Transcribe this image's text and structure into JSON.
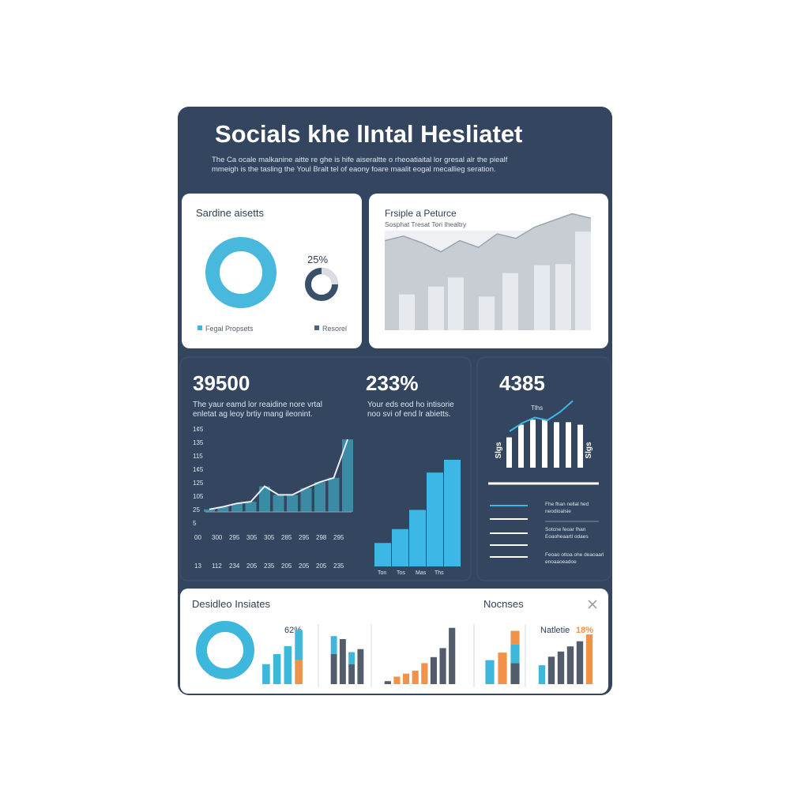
{
  "header": {
    "title": "Socials khe lIntal Hesliatet",
    "subtitle": [
      "The Ca ocale malkanine aitte re ghe is hife aiseraltte o rheoatiaital lor gresal alr the piealf",
      "mmeigh is the tasling the Youl Bralt tel of eaony foare maalit eogal mecallieg seration."
    ]
  },
  "assets": {
    "title": "Sardine aisetts",
    "small_donut": {
      "value": 25,
      "label": "25%"
    },
    "legend": [
      "Fegal Propsets",
      "Resorel"
    ]
  },
  "performance": {
    "title": "Frsiple a Peturce",
    "subtitle": "Sosphat Tresat Tori Ihealtry",
    "area": [
      80,
      84,
      78,
      70,
      80,
      74,
      86,
      82,
      92,
      98,
      104,
      100
    ],
    "bars": [
      32,
      39,
      47,
      30,
      51,
      58,
      59,
      88
    ],
    "ylim": [
      0,
      110
    ]
  },
  "kpi1": {
    "value": "39500",
    "text": [
      "The yaur eamd lor reaidine nore vrtal",
      "enletat ag leoy brtiy mang ileonint."
    ],
    "axis_labels": [
      "1¢5",
      "135",
      "115",
      "1¢5",
      "125",
      "105",
      "25",
      "5"
    ],
    "x_labels": [
      [
        "00",
        "300",
        "295",
        "305",
        "305",
        "285",
        "295",
        "298",
        "295"
      ],
      [
        "13",
        "112",
        "234",
        "205",
        "235",
        "205",
        "205",
        "205",
        "235"
      ]
    ],
    "values": [
      3,
      6,
      10,
      12,
      30,
      20,
      20,
      28,
      35,
      40,
      85
    ],
    "ylim": [
      0,
      100
    ]
  },
  "kpi2": {
    "value": "233%",
    "text": [
      "Your eds eod ho intisorie",
      "noo svi of end lr abietts."
    ],
    "bars": [
      22,
      35,
      53,
      88,
      100
    ],
    "ylim": [
      0,
      100
    ],
    "x_labels": [
      "Ton",
      "Tos",
      "Mas",
      "Ths"
    ]
  },
  "kpi3": {
    "value": "4385",
    "side_labels": [
      "Slgs",
      "Slgs"
    ],
    "line_label": "Tlhs",
    "bars": [
      60,
      85,
      95,
      95,
      90,
      90,
      85
    ],
    "line": [
      20,
      35,
      45,
      40,
      55,
      75
    ],
    "ylim": [
      0,
      100
    ],
    "items": [
      [
        "Fhe fhan nellal hed",
        "neodioalsie"
      ],
      [
        "Sotcne feoar fhan",
        "Eoaoheaartl odaes"
      ],
      [
        "Feoao ottoa ohe deaoaarl",
        "enoaaoeadoe"
      ]
    ]
  },
  "insights": {
    "title": "Desidleo Insiates",
    "right_title": "Nocnses",
    "donut_label": "62%",
    "right_label": "Natletie",
    "right_value": "18%",
    "charts": [
      {
        "ylim": [
          0,
          60
        ],
        "series": [
          {
            "color": "#f0924a",
            "values": [
              0,
              0,
              0,
              24
            ]
          },
          {
            "color": "#3db7dc",
            "values": [
              20,
              30,
              38,
              30
            ]
          }
        ]
      },
      {
        "ylim": [
          0,
          60
        ],
        "series": [
          {
            "color": "#535c6a",
            "values": [
              30,
              45,
              20,
              35
            ]
          },
          {
            "color": "#3db7dc",
            "values": [
              18,
              0,
              12,
              0
            ]
          }
        ]
      },
      {
        "ylim": [
          0,
          80
        ],
        "series": [
          {
            "color": "#535c6a",
            "values": [
              4,
              0,
              0,
              0,
              0,
              36,
              48,
              75
            ]
          },
          {
            "color": "#f0924a",
            "values": [
              0,
              10,
              14,
              18,
              28,
              0,
              0,
              0
            ]
          }
        ]
      },
      {
        "ylim": [
          0,
          80
        ],
        "series": [
          {
            "color": "#535c6a",
            "values": [
              0,
              0,
              28
            ]
          },
          {
            "color": "#3db7dc",
            "values": [
              32,
              0,
              25
            ]
          },
          {
            "color": "#f0924a",
            "values": [
              0,
              42,
              18
            ]
          }
        ]
      },
      {
        "ylim": [
          0,
          70
        ],
        "series": [
          {
            "color": "#3db7dc",
            "values": [
              22,
              0,
              0,
              0,
              0,
              0
            ]
          },
          {
            "color": "#535c6a",
            "values": [
              0,
              32,
              38,
              44,
              50,
              0
            ]
          },
          {
            "color": "#f0924a",
            "values": [
              0,
              0,
              0,
              0,
              0,
              58
            ]
          }
        ]
      }
    ]
  }
}
